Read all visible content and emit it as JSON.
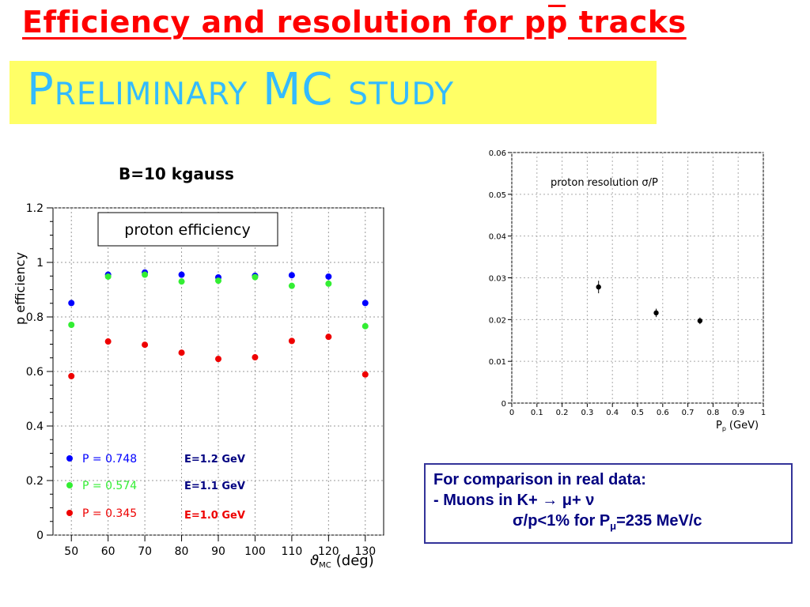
{
  "title": {
    "before_bar": "Efficiency and resolution for p",
    "bar_char": "p",
    "after_bar": " tracks"
  },
  "banner": {
    "text": "Preliminary MC study"
  },
  "field_label": "B=10 kgauss",
  "colors": {
    "title": "#ff0000",
    "banner_bg": "#ffff66",
    "banner_text": "#33bbff",
    "blue": "#0000ff",
    "green": "#33ee33",
    "red": "#ee0000",
    "box_text": "#000080"
  },
  "comparison": {
    "line1": "For comparison in real data:",
    "line2": "- Muons in K+  → μ+ ν",
    "line3_a": "σ/p<1% for P",
    "line3_sub": "μ",
    "line3_b": "=235 MeV/c"
  },
  "chart_data": [
    {
      "type": "scatter",
      "box_label": "proton efficiency",
      "ylabel": "p efficiency",
      "xlabel": "ϑ",
      "xlabel_sub": "MC",
      "xlabel_unit": "(deg)",
      "x_ticks": [
        50,
        60,
        70,
        80,
        90,
        100,
        110,
        120,
        130
      ],
      "y_ticks": [
        "0",
        "0.2",
        "0.4",
        "0.6",
        "0.8",
        "1",
        "1.2"
      ],
      "xlim": [
        45,
        135
      ],
      "ylim": [
        0,
        1.2
      ],
      "grid": true,
      "x": [
        50,
        60,
        70,
        80,
        90,
        100,
        110,
        120,
        130
      ],
      "series": [
        {
          "name": "P = 0.748",
          "energy": "E=1.2 GeV",
          "color": "#0000ff",
          "values": [
            0.851,
            0.955,
            0.963,
            0.955,
            0.945,
            0.951,
            0.953,
            0.948,
            0.851
          ]
        },
        {
          "name": "P = 0.574",
          "energy": "E=1.1 GeV",
          "color": "#33ee33",
          "values": [
            0.771,
            0.948,
            0.955,
            0.93,
            0.933,
            0.946,
            0.914,
            0.922,
            0.766
          ]
        },
        {
          "name": "P = 0.345",
          "energy": "E=1.0 GeV",
          "color": "#ee0000",
          "values": [
            0.583,
            0.71,
            0.698,
            0.669,
            0.646,
            0.652,
            0.712,
            0.727,
            0.589
          ]
        }
      ]
    },
    {
      "type": "scatter",
      "annotation": "proton resolution σ/P",
      "xlabel": "P",
      "xlabel_sub": "p",
      "xlabel_unit": "(GeV)",
      "x_ticks": [
        "0",
        "0.1",
        "0.2",
        "0.3",
        "0.4",
        "0.5",
        "0.6",
        "0.7",
        "0.8",
        "0.9",
        "1"
      ],
      "y_ticks": [
        "0",
        "0.01",
        "0.02",
        "0.03",
        "0.04",
        "0.05",
        "0.06"
      ],
      "xlim": [
        0,
        1
      ],
      "ylim": [
        0,
        0.06
      ],
      "grid": true,
      "x": [
        0.345,
        0.574,
        0.748
      ],
      "values": [
        0.0278,
        0.0216,
        0.0197
      ],
      "errors": [
        0.0015,
        0.001,
        0.0008
      ]
    }
  ]
}
